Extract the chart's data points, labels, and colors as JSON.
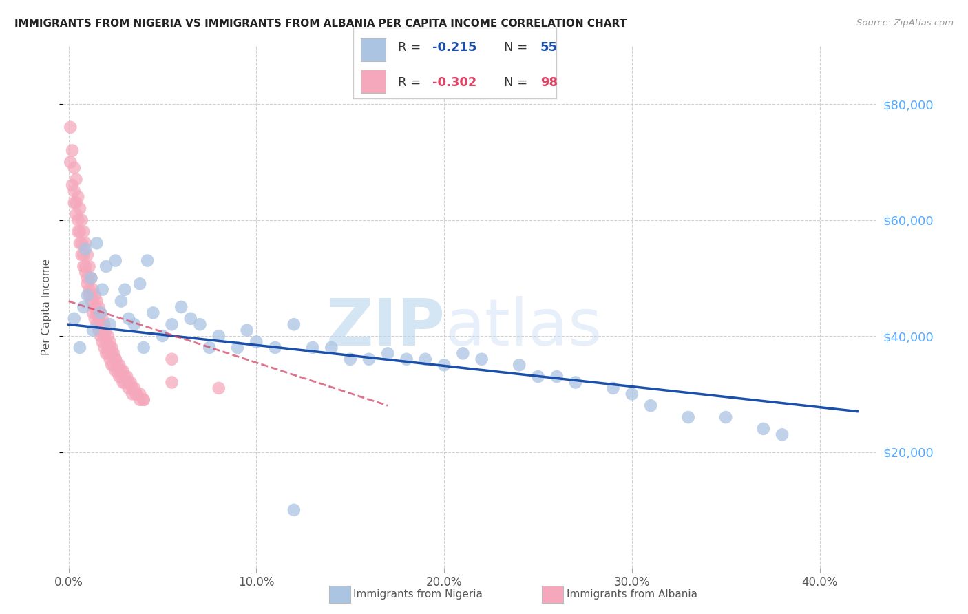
{
  "title": "IMMIGRANTS FROM NIGERIA VS IMMIGRANTS FROM ALBANIA PER CAPITA INCOME CORRELATION CHART",
  "source": "Source: ZipAtlas.com",
  "xlabel_ticks": [
    "0.0%",
    "10.0%",
    "20.0%",
    "30.0%",
    "40.0%"
  ],
  "xlabel_vals": [
    0.0,
    0.1,
    0.2,
    0.3,
    0.4
  ],
  "ylabel": "Per Capita Income",
  "ylim": [
    0,
    90000
  ],
  "xlim": [
    -0.003,
    0.43
  ],
  "ytick_labels": [
    "$20,000",
    "$40,000",
    "$60,000",
    "$80,000"
  ],
  "ytick_vals": [
    20000,
    40000,
    60000,
    80000
  ],
  "nigeria_color": "#aac4e2",
  "albania_color": "#f5a8bc",
  "nigeria_edge_color": "#aac4e2",
  "albania_edge_color": "#f5a8bc",
  "nigeria_line_color": "#1a4faa",
  "albania_line_color": "#d44466",
  "nigeria_R": -0.215,
  "nigeria_N": 55,
  "albania_R": -0.302,
  "albania_N": 98,
  "watermark_zip": "ZIP",
  "watermark_atlas": "atlas",
  "grid_color": "#cccccc",
  "nigeria_x": [
    0.003,
    0.006,
    0.008,
    0.009,
    0.01,
    0.012,
    0.013,
    0.015,
    0.017,
    0.018,
    0.02,
    0.022,
    0.025,
    0.028,
    0.03,
    0.032,
    0.035,
    0.038,
    0.04,
    0.042,
    0.045,
    0.05,
    0.055,
    0.06,
    0.065,
    0.07,
    0.075,
    0.08,
    0.09,
    0.095,
    0.1,
    0.11,
    0.12,
    0.13,
    0.14,
    0.15,
    0.16,
    0.17,
    0.18,
    0.19,
    0.2,
    0.21,
    0.22,
    0.24,
    0.25,
    0.26,
    0.27,
    0.29,
    0.3,
    0.31,
    0.33,
    0.35,
    0.37,
    0.38,
    0.12
  ],
  "nigeria_y": [
    43000,
    38000,
    45000,
    55000,
    47000,
    50000,
    41000,
    56000,
    44000,
    48000,
    52000,
    42000,
    53000,
    46000,
    48000,
    43000,
    42000,
    49000,
    38000,
    53000,
    44000,
    40000,
    42000,
    45000,
    43000,
    42000,
    38000,
    40000,
    38000,
    41000,
    39000,
    38000,
    42000,
    38000,
    38000,
    36000,
    36000,
    37000,
    36000,
    36000,
    35000,
    37000,
    36000,
    35000,
    33000,
    33000,
    32000,
    31000,
    30000,
    28000,
    26000,
    26000,
    24000,
    23000,
    10000
  ],
  "albania_x": [
    0.001,
    0.002,
    0.003,
    0.003,
    0.004,
    0.004,
    0.005,
    0.005,
    0.006,
    0.006,
    0.007,
    0.007,
    0.008,
    0.008,
    0.009,
    0.009,
    0.01,
    0.01,
    0.011,
    0.011,
    0.012,
    0.012,
    0.013,
    0.013,
    0.014,
    0.014,
    0.015,
    0.015,
    0.016,
    0.016,
    0.017,
    0.017,
    0.018,
    0.018,
    0.019,
    0.019,
    0.02,
    0.02,
    0.021,
    0.021,
    0.022,
    0.022,
    0.023,
    0.023,
    0.024,
    0.025,
    0.025,
    0.026,
    0.027,
    0.028,
    0.029,
    0.03,
    0.031,
    0.032,
    0.033,
    0.034,
    0.035,
    0.036,
    0.038,
    0.04,
    0.001,
    0.002,
    0.003,
    0.004,
    0.005,
    0.006,
    0.007,
    0.008,
    0.009,
    0.01,
    0.011,
    0.012,
    0.013,
    0.014,
    0.015,
    0.016,
    0.017,
    0.018,
    0.019,
    0.02,
    0.021,
    0.022,
    0.023,
    0.024,
    0.025,
    0.026,
    0.027,
    0.028,
    0.029,
    0.03,
    0.032,
    0.034,
    0.036,
    0.038,
    0.04,
    0.055,
    0.055,
    0.08
  ],
  "albania_y": [
    76000,
    72000,
    69000,
    65000,
    67000,
    63000,
    64000,
    60000,
    62000,
    58000,
    60000,
    56000,
    58000,
    54000,
    56000,
    52000,
    54000,
    50000,
    52000,
    48000,
    50000,
    47000,
    48000,
    46000,
    47000,
    45000,
    46000,
    44000,
    45000,
    43000,
    44000,
    42000,
    43000,
    41000,
    42000,
    40000,
    41000,
    39000,
    40000,
    38000,
    39000,
    38000,
    38000,
    37000,
    37000,
    36000,
    36000,
    35000,
    35000,
    34000,
    34000,
    33000,
    33000,
    32000,
    32000,
    31000,
    31000,
    30000,
    30000,
    29000,
    70000,
    66000,
    63000,
    61000,
    58000,
    56000,
    54000,
    52000,
    51000,
    49000,
    47000,
    46000,
    44000,
    43000,
    42000,
    41000,
    40000,
    39000,
    38000,
    37000,
    37000,
    36000,
    35000,
    35000,
    34000,
    34000,
    33000,
    33000,
    32000,
    32000,
    31000,
    30000,
    30000,
    29000,
    29000,
    36000,
    32000,
    31000
  ],
  "nigeria_line_x": [
    0.0,
    0.42
  ],
  "nigeria_line_y": [
    42000,
    27000
  ],
  "albania_line_x": [
    0.0,
    0.15
  ],
  "albania_line_y": [
    46000,
    32000
  ]
}
